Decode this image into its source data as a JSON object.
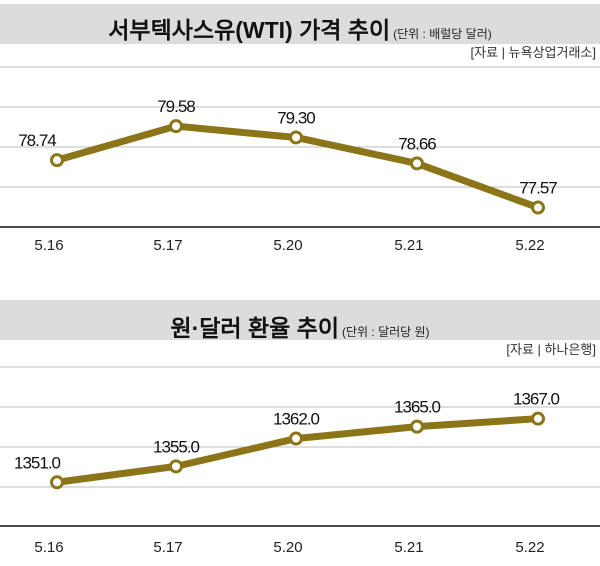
{
  "chart_data": [
    {
      "type": "line",
      "title": "서부텍사스유(WTI) 가격 추이",
      "unit": "(단위 : 배럴당 달러)",
      "source": "[자료 | 뉴욕상업거래소]",
      "categories": [
        "5.16",
        "5.17",
        "5.20",
        "5.21",
        "5.22"
      ],
      "values": [
        78.74,
        79.58,
        79.3,
        78.66,
        77.57
      ],
      "value_labels": [
        "78.74",
        "79.58",
        "79.30",
        "78.66",
        "77.57"
      ],
      "ylim": [
        77.09,
        81.04
      ],
      "grid": true,
      "color": "#8c7519"
    },
    {
      "type": "line",
      "title": "원·달러 환율 추이",
      "unit": "(단위 : 달러당 원)",
      "source": "[자료 | 하나은행]",
      "categories": [
        "5.16",
        "5.17",
        "5.20",
        "5.21",
        "5.22"
      ],
      "values": [
        1351.0,
        1355.0,
        1362.0,
        1365.0,
        1367.0
      ],
      "value_labels": [
        "1351.0",
        "1355.0",
        "1362.0",
        "1365.0",
        "1367.0"
      ],
      "ylim": [
        1340.0,
        1380.0
      ],
      "grid": true,
      "color": "#8c7519"
    }
  ]
}
